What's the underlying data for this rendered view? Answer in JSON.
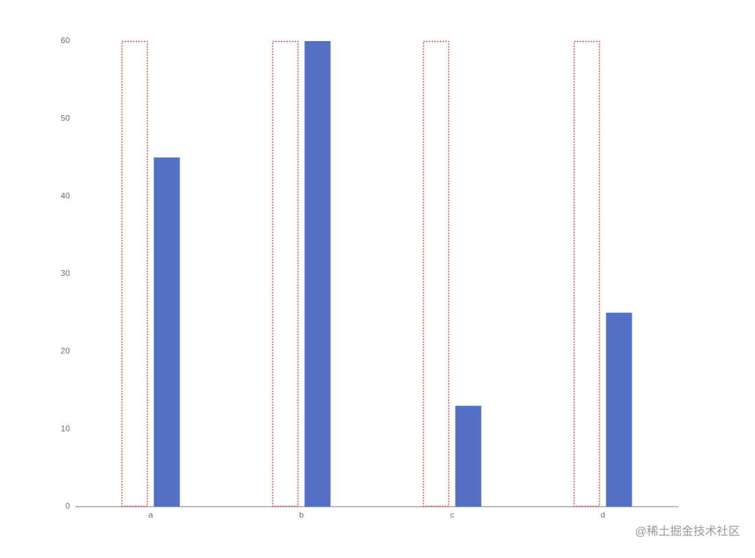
{
  "chart_data": {
    "type": "bar",
    "categories": [
      "a",
      "b",
      "c",
      "d"
    ],
    "series": [
      {
        "color": "#e0402f",
        "style": "dotted-outline",
        "values": [
          60,
          60,
          60,
          60
        ]
      },
      {
        "color": "#5470c6",
        "style": "solid",
        "values": [
          45,
          60,
          13,
          25
        ]
      }
    ],
    "ylim": [
      0,
      60
    ],
    "yticks": [
      0,
      10,
      20,
      30,
      40,
      50,
      60
    ],
    "grid": false,
    "watermark": "@稀土掘金技术社区"
  }
}
